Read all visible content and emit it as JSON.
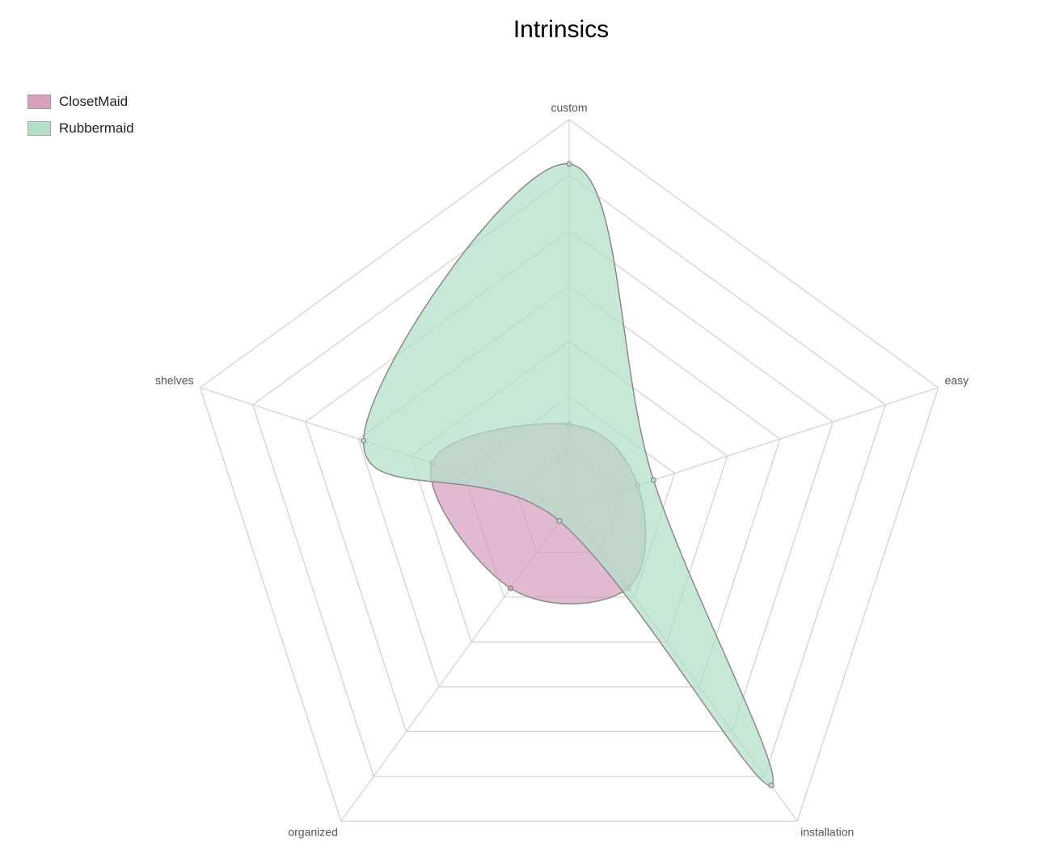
{
  "chart_data": {
    "type": "radar",
    "title": "Intrinsics",
    "axes": [
      "custom",
      "easy",
      "installation",
      "organized",
      "shelves"
    ],
    "rmax": 7,
    "rings": 7,
    "legend_position": "top-left",
    "grid": true,
    "series": [
      {
        "name": "ClosetMaid",
        "values": [
          1.5,
          1.3,
          1.8,
          1.8,
          2.6
        ],
        "color": "#d6a0c1"
      },
      {
        "name": "Rubbermaid",
        "values": [
          6.2,
          1.6,
          6.2,
          0.3,
          3.9
        ],
        "color": "#b3dfc7"
      }
    ]
  }
}
